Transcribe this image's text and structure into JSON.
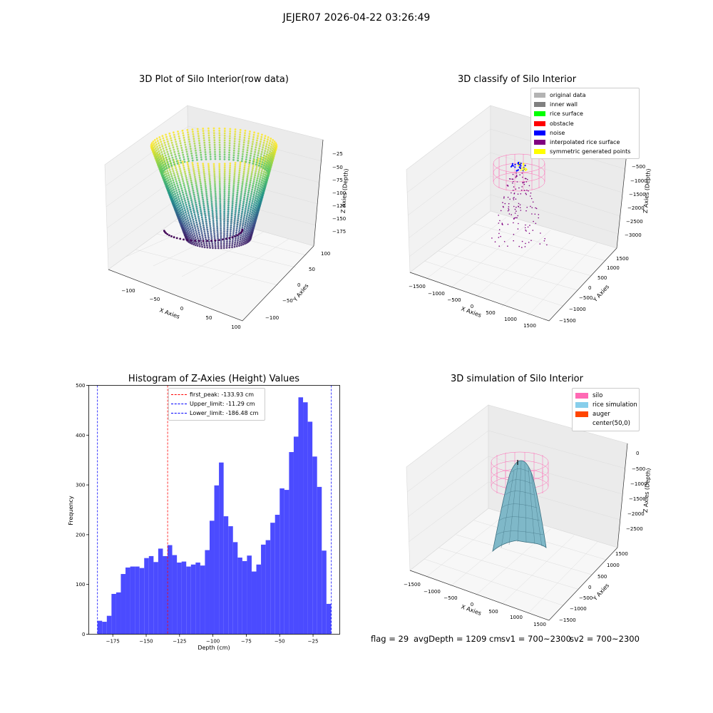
{
  "figure": {
    "suptitle": "JEJER07 2026-04-22 03:26:49",
    "footer": {
      "flag": "flag = 29",
      "avg": "avgDepth = 1209 cm",
      "sv1": "sv1 = 700~2300",
      "sv2": "sv2 = 700~2300"
    }
  },
  "panels": {
    "raw": {
      "title": "3D Plot of Silo Interior(row data)",
      "xlabel": "X Axies",
      "ylabel": "Y Axies",
      "zlabel": "Z Axies (Depth)",
      "xticks": [
        "−100",
        "−50",
        "0",
        "50",
        "100"
      ],
      "yticks": [
        "−100",
        "−50",
        "0",
        "50",
        "100"
      ],
      "zticks": [
        "−25",
        "−50",
        "−75",
        "−100",
        "−125",
        "−150",
        "−175"
      ],
      "colormap": "viridis"
    },
    "classify": {
      "title": "3D classify of Silo Interior",
      "xlabel": "X Axies",
      "ylabel": "Y Axies",
      "zlabel": "Z Axies (Depth)",
      "xticks": [
        "−1500",
        "−1000",
        "−500",
        "0",
        "500",
        "1000",
        "1500"
      ],
      "yticks": [
        "−1500",
        "−1000",
        "−500",
        "0",
        "500",
        "1000",
        "1500"
      ],
      "zticks": [
        "0",
        "−500",
        "−1000",
        "−1500",
        "−2000",
        "−2500",
        "−3000"
      ],
      "legend": [
        {
          "label": "original data",
          "color": "#b3b3b3"
        },
        {
          "label": "inner wall",
          "color": "#808080"
        },
        {
          "label": "rice surface",
          "color": "#00ff00"
        },
        {
          "label": "obstacle",
          "color": "#ff0000"
        },
        {
          "label": "noise",
          "color": "#0000ff"
        },
        {
          "label": "interpolated rice surface",
          "color": "#800080"
        },
        {
          "label": "symmetric generated points",
          "color": "#ffff00"
        }
      ]
    },
    "simulation": {
      "title": "3D simulation of Silo Interior",
      "xlabel": "X Axies",
      "ylabel": "Y Axies",
      "zlabel": "Z Axies (Depth)",
      "xticks": [
        "−1500",
        "−1000",
        "−500",
        "0",
        "500",
        "1000",
        "1500"
      ],
      "yticks": [
        "−1500",
        "−1000",
        "−500",
        "0",
        "500",
        "1000",
        "1500"
      ],
      "zticks": [
        "0",
        "−500",
        "−1000",
        "−1500",
        "−2000",
        "−2500"
      ],
      "legend": [
        {
          "label": "silo",
          "color": "#ff69b4"
        },
        {
          "label": "rice simulation",
          "color": "#87ceeb"
        },
        {
          "label": "auger",
          "color": "#ff4500"
        },
        {
          "label": "center(50,0)",
          "color": "#ffffff"
        }
      ]
    }
  },
  "chart_data": {
    "type": "bar",
    "title": "Histogram of Z-Axies (Height) Values",
    "xlabel": "Depth (cm)",
    "ylabel": "Frequency",
    "xlim": [
      -193,
      -5
    ],
    "ylim": [
      0,
      500
    ],
    "xticks": [
      -175,
      -150,
      -125,
      -100,
      -75,
      -50,
      -25
    ],
    "xtick_labels": [
      "−175",
      "−150",
      "−125",
      "−100",
      "−75",
      "−50",
      "−25"
    ],
    "yticks": [
      0,
      100,
      200,
      300,
      400,
      500
    ],
    "bar_color": "#4b4bff",
    "bins_start": -186.48,
    "bin_width": 3.5,
    "values": [
      27,
      25,
      37,
      81,
      84,
      121,
      134,
      136,
      136,
      133,
      153,
      157,
      145,
      172,
      157,
      179,
      159,
      144,
      146,
      136,
      140,
      144,
      138,
      169,
      228,
      299,
      345,
      237,
      217,
      185,
      154,
      147,
      158,
      126,
      140,
      180,
      189,
      224,
      240,
      293,
      290,
      366,
      397,
      476,
      466,
      427,
      357,
      296,
      168,
      61
    ],
    "lines": [
      {
        "label": "first_peak: -133.93 cm",
        "x": -133.93,
        "color": "#ff0000"
      },
      {
        "label": "Upper_limit: -11.29 cm",
        "x": -11.29,
        "color": "#0000ff"
      },
      {
        "label": "Lower_limit: -186.48 cm",
        "x": -186.48,
        "color": "#0000ff"
      }
    ],
    "legend_position": "top-center"
  }
}
